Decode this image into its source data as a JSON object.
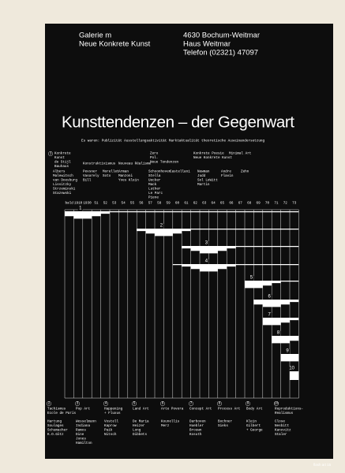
{
  "header": {
    "gallery": [
      "Galerie m",
      "Neue Konkrete Kunst"
    ],
    "address": [
      "4630 Bochum-Weitmar",
      "Haus Weitmar",
      "Telefon (02321) 47097"
    ]
  },
  "title": "Kunsttendenzen – der Gegenwart",
  "criteria": "Es waren: Publizität Ausstellungsaktivität Marktaktualität theoretische Auseinandersetzung",
  "top_movements": [
    {
      "number": "1",
      "lines": [
        "Konkrete",
        "Kunst",
        "de Stijl",
        "Bauhaus"
      ]
    },
    {
      "lines": [
        "Konstruktivismus"
      ]
    },
    {
      "lines": [
        "Nouveau Réalisme"
      ]
    },
    {
      "lines": [
        "Zero",
        "Pol.",
        "Neue Tendenzen"
      ]
    },
    {
      "lines": [
        "Konkrete Poesie",
        "Neue Konkrete Kunst"
      ]
    },
    {
      "lines": [
        "Minimal Art"
      ]
    }
  ],
  "top_artists": [
    [
      "Albers",
      "Malewitsch",
      "van Doesburg",
      "Lissitzky",
      "Strzeminski",
      "Stazewski"
    ],
    [
      "Pevsner",
      "Vasarely",
      "Bill"
    ],
    [
      "Morellet",
      "Soto"
    ],
    [
      "Arman",
      "Manzoni",
      "Yves Klein"
    ],
    [
      "Schoonhoven",
      "Stella",
      "Uecker",
      "Mack",
      "Luther",
      "Le Parc",
      "Piene"
    ],
    [
      "Castellani"
    ],
    [
      "Newman",
      "Judd",
      "Sol LeWitt",
      "Martin"
    ],
    [
      "Andre",
      "Flavin"
    ],
    [
      "Zehn"
    ]
  ],
  "years": [
    "bald",
    "1910",
    "1930",
    "51",
    "52",
    "53",
    "54",
    "55",
    "56",
    "57",
    "58",
    "59",
    "60",
    "61",
    "62",
    "63",
    "64",
    "65",
    "66",
    "67",
    "68",
    "69",
    "70",
    "71",
    "72",
    "73"
  ],
  "bands": [
    "1",
    "2",
    "3",
    "4",
    "5",
    "6",
    "7",
    "8",
    "9",
    "10"
  ],
  "legend": [
    {
      "number": "2",
      "name": [
        "Tachismus",
        "Ecole de Paris"
      ],
      "artists": [
        "Hartung",
        "Soulages",
        "Schumacher",
        "K.O.Götz"
      ]
    },
    {
      "number": "3",
      "name": [
        "Pop Art"
      ],
      "artists": [
        "Wesselmann",
        "Indiana",
        "Ramos",
        "Dine",
        "Jones",
        "Hamilton"
      ]
    },
    {
      "number": "4",
      "name": [
        "Happening",
        "+ Fluxus"
      ],
      "artists": [
        "Vostell",
        "Kaprow",
        "Paik",
        "Nitsch"
      ]
    },
    {
      "number": "5",
      "name": [
        "Land Art"
      ],
      "artists": [
        "De Maria",
        "Heizer",
        "Long",
        "Dibbets"
      ]
    },
    {
      "number": "6",
      "name": [
        "Arte Povera"
      ],
      "artists": [
        "Kounellis",
        "Merz"
      ]
    },
    {
      "number": "7",
      "name": [
        "Concept Art"
      ],
      "artists": [
        "Darboven",
        "Huebler",
        "Brouwn",
        "Kosuth"
      ]
    },
    {
      "number": "8",
      "name": [
        "Process Art"
      ],
      "artists": [
        "Bochner",
        "Sieks"
      ]
    },
    {
      "number": "9",
      "name": [
        "Body Art"
      ],
      "artists": [
        "Klein",
        "Gilbert",
        "+ George"
      ]
    },
    {
      "number": "10",
      "name": [
        "Reproduktions-",
        "Realismus"
      ],
      "artists": [
        "Close",
        "Nesbitt",
        "Kanovitz",
        "Staler"
      ]
    }
  ],
  "footer": "flash art 15"
}
